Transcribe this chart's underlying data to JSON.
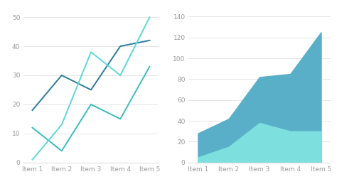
{
  "categories": [
    "Item 1",
    "Item 2",
    "Item 3",
    "Item 4",
    "Item 5"
  ],
  "line_chart": {
    "series1": [
      18,
      30,
      25,
      40,
      42
    ],
    "series2": [
      12,
      4,
      20,
      15,
      33
    ],
    "series3": [
      1,
      13,
      38,
      30,
      50
    ],
    "color1": "#2b7b9b",
    "color2": "#3bbcbc",
    "color3": "#5dd8d8",
    "ylim": [
      0,
      52
    ],
    "yticks": [
      0,
      10,
      20,
      30,
      40,
      50
    ]
  },
  "area_chart": {
    "series_bottom": [
      5,
      15,
      38,
      30,
      30
    ],
    "series_top": [
      28,
      42,
      82,
      85,
      125
    ],
    "color_bottom": "#7de0df",
    "color_top": "#5aafc8",
    "ylim": [
      0,
      145
    ],
    "yticks": [
      0,
      20,
      40,
      60,
      80,
      100,
      120,
      140
    ]
  },
  "background_color": "#ffffff",
  "grid_color": "#e0e0e0",
  "tick_color": "#999999",
  "tick_fontsize": 6.5,
  "linewidth": 1.4
}
